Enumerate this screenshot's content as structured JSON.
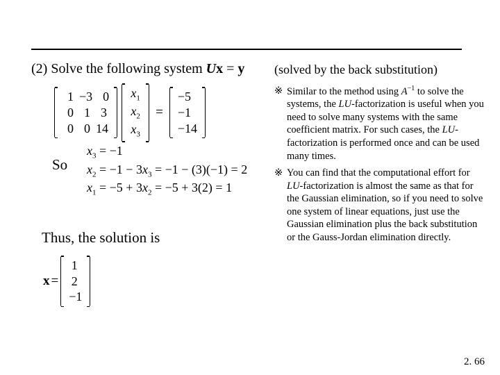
{
  "line1": {
    "num": "(2)",
    "text1": " Solve the following system ",
    "U": "U",
    "x": "x",
    "eq": " = ",
    "y": "y",
    "hint": "(solved by the back substitution)"
  },
  "matrix": {
    "A": [
      [
        "1",
        "−3",
        "0"
      ],
      [
        "0",
        "1",
        "3"
      ],
      [
        "0",
        "0",
        "14"
      ]
    ],
    "xv": [
      "x",
      "x",
      "x"
    ],
    "xs": [
      "1",
      "2",
      "3"
    ],
    "eq": "=",
    "b": [
      "−5",
      "−1",
      "−14"
    ]
  },
  "so": "So",
  "steps": {
    "s1a": "x",
    "s1s": "3",
    "s1b": " = −1",
    "s2a": "x",
    "s2s": "2",
    "s2b": " = −1 − 3",
    "s2c": "x",
    "s2cs": "3",
    "s2d": " = −1 − (3)(−1) = 2",
    "s3a": "x",
    "s3s": "1",
    "s3b": " = −5 + 3",
    "s3c": "x",
    "s3cs": "2",
    "s3d": " = −5 + 3(2) = 1"
  },
  "thus": "Thus, the solution is",
  "xvec": {
    "x": "x",
    "eq": " = ",
    "vals": [
      "1",
      "2",
      "−1"
    ]
  },
  "notes": {
    "mark": "※",
    "n1a": "Similar to the method using ",
    "n1A": "A",
    "n1exp": "−1",
    "n1b": " to solve the systems, the ",
    "n1LU": "LU",
    "n1c": "-factorization is useful when you need to solve many systems with the same coefficient matrix. For such cases, the ",
    "n1LU2": "LU",
    "n1d": "-factorization is performed once and can be used many times.",
    "n2a": "You can find that the computational effort for ",
    "n2LU": "LU",
    "n2b": "-factorization is almost the same as that for the Gaussian elimination, so if you need to solve one system of linear equations, just use the Gaussian elimination plus the back substitution or the Gauss-Jordan elimination directly."
  },
  "pagenum": "2. 66",
  "colors": {
    "text": "#000000",
    "bg": "#ffffff"
  }
}
